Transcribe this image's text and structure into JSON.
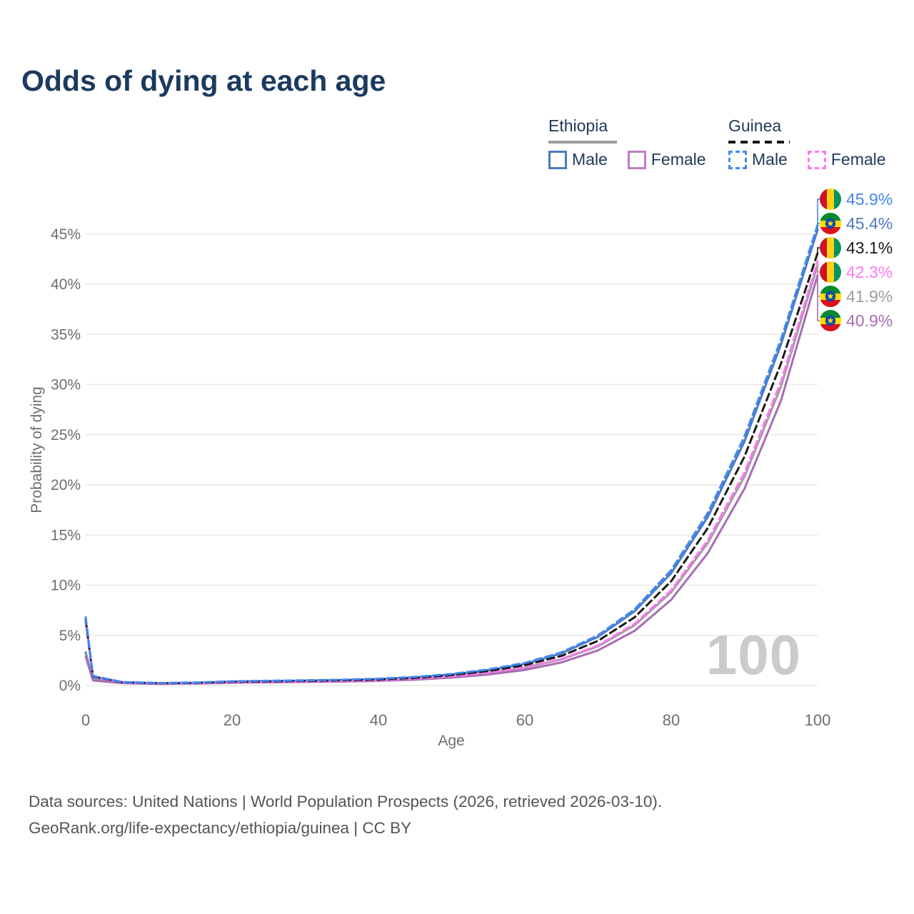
{
  "title": "Odds of dying at each age",
  "legend": {
    "ethiopia": {
      "label": "Ethiopia",
      "male_label": "Male",
      "female_label": "Female"
    },
    "guinea": {
      "label": "Guinea",
      "male_label": "Male",
      "female_label": "Female"
    }
  },
  "chart_data": {
    "type": "line",
    "title": "Odds of dying at each age",
    "xlabel": "Age",
    "ylabel": "Probability of dying",
    "xlim": [
      0,
      100
    ],
    "ylim": [
      0,
      47
    ],
    "x_ticks": [
      0,
      20,
      40,
      60,
      80,
      100
    ],
    "y_ticks_percent": [
      0,
      5,
      10,
      15,
      20,
      25,
      30,
      35,
      40,
      45
    ],
    "grid": "horizontal",
    "legend_position": "top-right",
    "watermark": "100",
    "x": [
      0,
      1,
      5,
      10,
      15,
      20,
      25,
      30,
      35,
      40,
      45,
      50,
      55,
      60,
      65,
      70,
      75,
      80,
      85,
      90,
      95,
      100
    ],
    "series": [
      {
        "name": "Guinea Male",
        "country": "Guinea",
        "sex": "Male",
        "color": "#4286f5",
        "dashed": true,
        "flag": "guinea",
        "end_label": "45.9%",
        "values": [
          6.8,
          0.95,
          0.35,
          0.25,
          0.3,
          0.42,
          0.47,
          0.52,
          0.58,
          0.68,
          0.85,
          1.15,
          1.6,
          2.25,
          3.3,
          5.0,
          7.6,
          11.5,
          17.2,
          24.8,
          34.5,
          45.9
        ]
      },
      {
        "name": "Ethiopia Male",
        "country": "Ethiopia",
        "sex": "Male",
        "color": "#4d7cbe",
        "dashed": false,
        "flag": "ethiopia",
        "end_label": "45.4%",
        "values": [
          3.3,
          0.6,
          0.28,
          0.2,
          0.26,
          0.38,
          0.43,
          0.48,
          0.54,
          0.63,
          0.8,
          1.1,
          1.52,
          2.15,
          3.2,
          4.85,
          7.4,
          11.2,
          16.8,
          24.3,
          34.0,
          45.4
        ]
      },
      {
        "name": "Guinea Both sexes",
        "country": "Guinea",
        "sex": "Both",
        "color": "#1a1a1a",
        "dashed": true,
        "flag": "guinea",
        "end_label": "43.1%",
        "values": [
          6.6,
          0.9,
          0.33,
          0.23,
          0.27,
          0.38,
          0.42,
          0.47,
          0.52,
          0.6,
          0.76,
          1.04,
          1.44,
          2.02,
          2.95,
          4.45,
          6.8,
          10.4,
          15.7,
          22.8,
          32.1,
          43.1
        ]
      },
      {
        "name": "Guinea Female",
        "country": "Guinea",
        "sex": "Female",
        "color": "#ff78f2",
        "dashed": true,
        "flag": "guinea",
        "end_label": "42.3%",
        "values": [
          6.3,
          0.85,
          0.31,
          0.21,
          0.25,
          0.33,
          0.37,
          0.42,
          0.46,
          0.54,
          0.68,
          0.93,
          1.28,
          1.8,
          2.65,
          4.0,
          6.15,
          9.5,
          14.5,
          21.2,
          30.3,
          42.3
        ]
      },
      {
        "name": "Ethiopia Both sexes",
        "country": "Ethiopia",
        "sex": "Both",
        "color": "#9e9e9e",
        "dashed": false,
        "flag": "ethiopia",
        "end_label": "41.9%",
        "values": [
          3.1,
          0.55,
          0.26,
          0.18,
          0.23,
          0.32,
          0.36,
          0.4,
          0.45,
          0.53,
          0.66,
          0.9,
          1.25,
          1.76,
          2.6,
          3.9,
          6.0,
          9.3,
          14.2,
          20.8,
          29.8,
          41.9
        ]
      },
      {
        "name": "Ethiopia Female",
        "country": "Ethiopia",
        "sex": "Female",
        "color": "#a76db4",
        "dashed": false,
        "flag": "ethiopia",
        "end_label": "40.9%",
        "values": [
          2.9,
          0.5,
          0.23,
          0.16,
          0.2,
          0.27,
          0.31,
          0.35,
          0.39,
          0.46,
          0.58,
          0.79,
          1.09,
          1.55,
          2.3,
          3.5,
          5.45,
          8.55,
          13.2,
          19.6,
          28.4,
          40.9
        ]
      }
    ]
  },
  "footer": {
    "line1": "Data sources: United Nations | World Population Prospects (2026, retrieved 2026-03-10).",
    "line2": "GeoRank.org/life-expectancy/ethiopia/guinea | CC BY"
  }
}
